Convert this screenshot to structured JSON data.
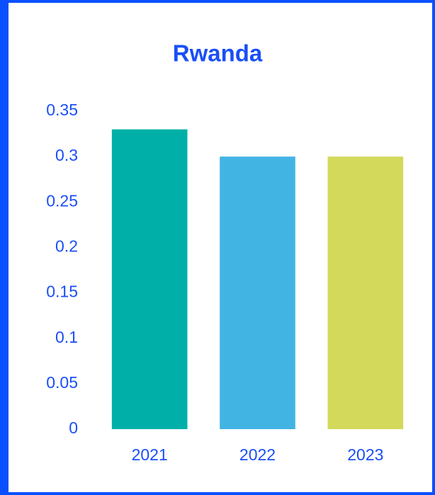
{
  "chart_data": {
    "type": "bar",
    "title": "Rwanda",
    "categories": [
      "2021",
      "2022",
      "2023"
    ],
    "values": [
      0.33,
      0.3,
      0.3
    ],
    "colors": [
      "#00b0a8",
      "#42b4e4",
      "#d3d95a"
    ],
    "ylim": [
      0,
      0.35
    ],
    "yticks": [
      0,
      0.05,
      0.1,
      0.15,
      0.2,
      0.25,
      0.3,
      0.35
    ],
    "grid": false
  }
}
